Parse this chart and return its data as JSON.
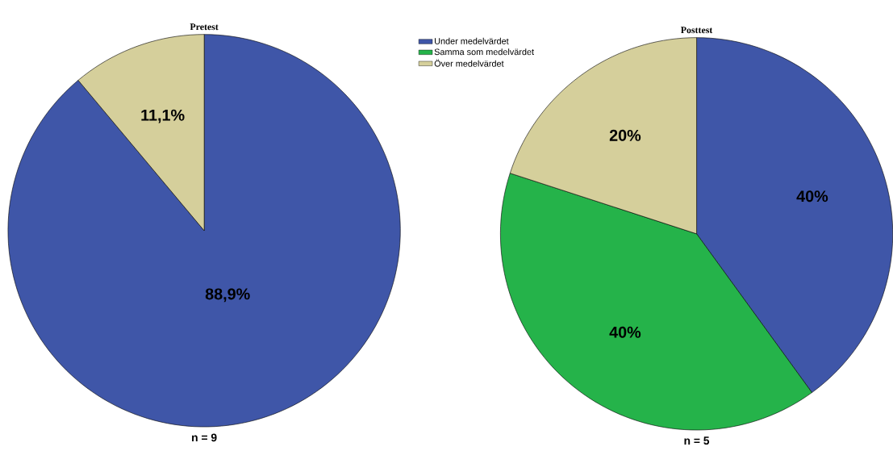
{
  "chart_data": [
    {
      "type": "pie",
      "title": "Pretest",
      "categories": [
        "Under medelvärdet",
        "Samma som medelvärdet",
        "Över medelvärdet"
      ],
      "values": [
        88.9,
        0,
        11.1
      ],
      "value_labels": [
        "88,9%",
        null,
        "11,1%"
      ],
      "colors": [
        "#3f56a8",
        "#25b34a",
        "#d5cf9b"
      ],
      "legend": "top right",
      "annotations": [
        "n = 9"
      ]
    },
    {
      "type": "pie",
      "title": "Posttest",
      "categories": [
        null,
        null,
        null
      ],
      "values": [
        40,
        40,
        20
      ],
      "value_labels": [
        "40%",
        "40%",
        "20%"
      ],
      "colors": [
        "#3f56a8",
        "#25b34a",
        "#d5cf9b"
      ],
      "annotations": [
        "n = 5"
      ]
    }
  ]
}
